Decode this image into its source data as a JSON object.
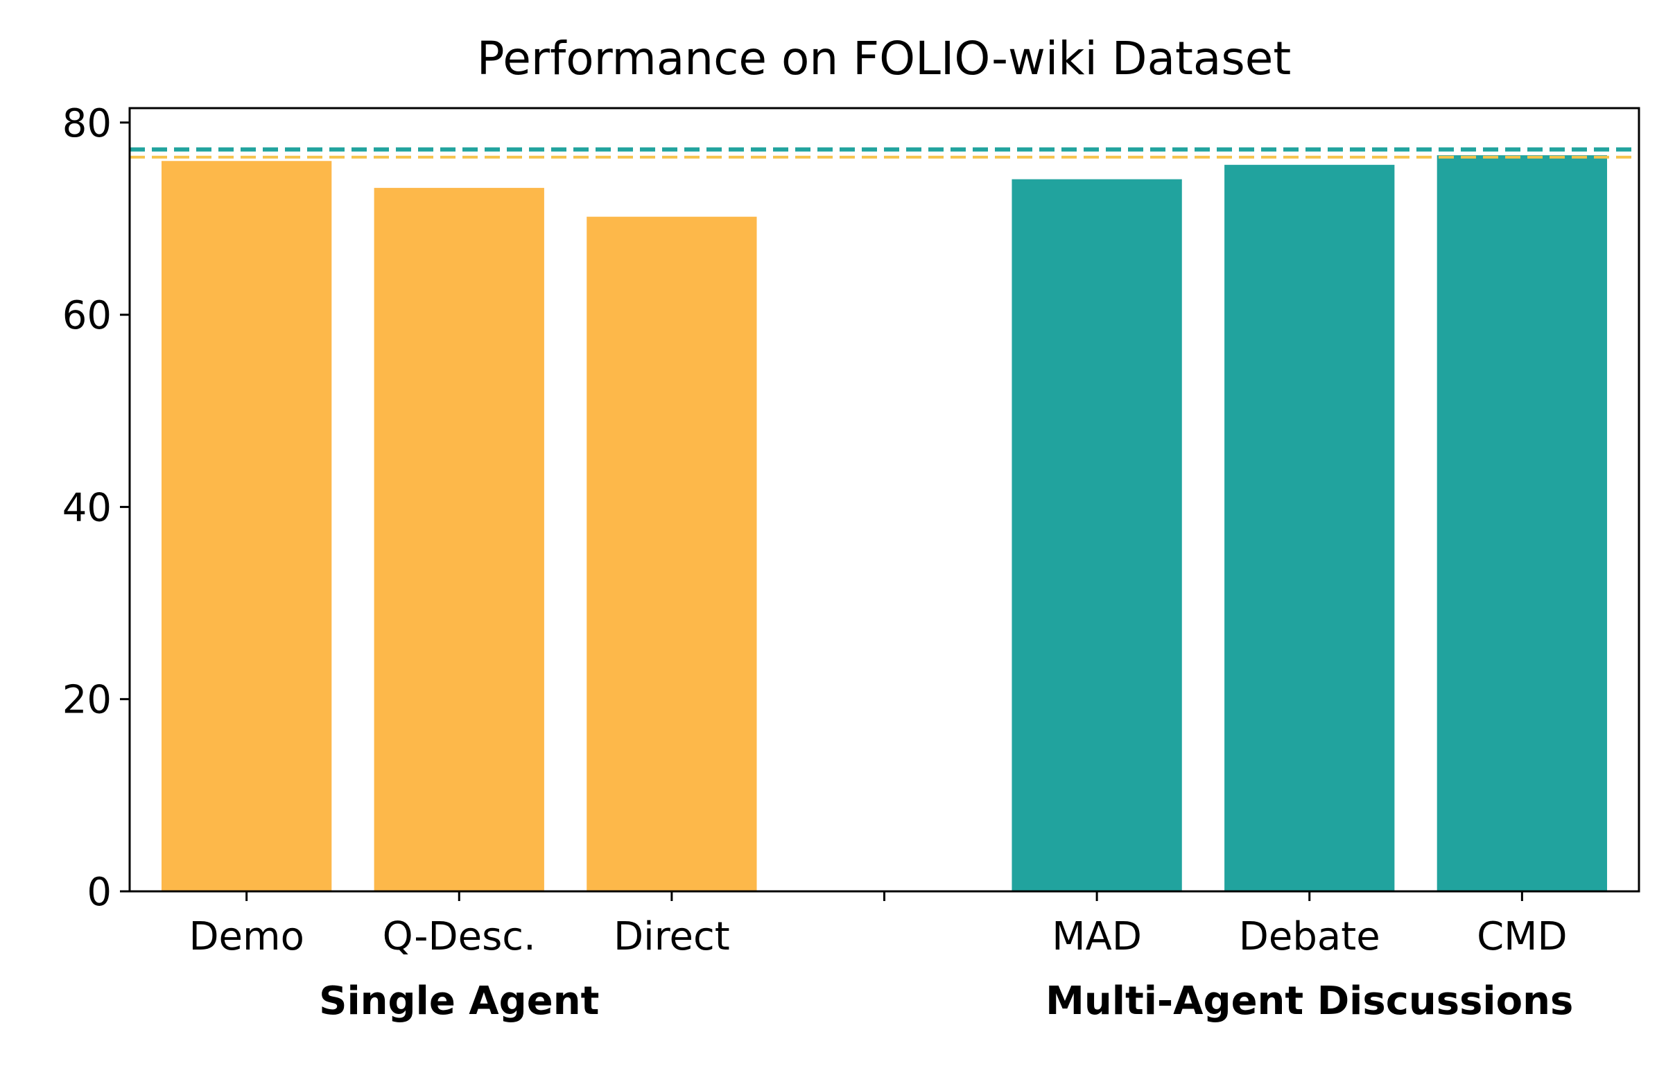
{
  "chart_data": {
    "type": "bar",
    "title": "Performance on FOLIO-wiki Dataset",
    "xlabel": "",
    "ylabel": "",
    "ylim": [
      0,
      81.5
    ],
    "yticks": [
      0,
      20,
      40,
      60,
      80
    ],
    "grid": false,
    "categories": [
      "Demo",
      "Q-Desc.",
      "Direct",
      "MAD",
      "Debate",
      "CMD"
    ],
    "slots": [
      0,
      1,
      2,
      4,
      5,
      6
    ],
    "values": [
      76.0,
      73.2,
      70.2,
      74.1,
      75.6,
      76.6
    ],
    "bar_colors": [
      "#FDB84A",
      "#FDB84A",
      "#FDB84A",
      "#21A39E",
      "#21A39E",
      "#21A39E"
    ],
    "groups": [
      {
        "label": "Single Agent",
        "slot_center": 1
      },
      {
        "label": "Multi-Agent Discussions",
        "slot_center": 5
      }
    ],
    "reference_lines": [
      {
        "y": 77.2,
        "color": "#21A39E",
        "style": "dashed"
      },
      {
        "y": 76.4,
        "color": "#F5C24A",
        "style": "dashed"
      }
    ],
    "x_gap_tick_slot": 3
  }
}
